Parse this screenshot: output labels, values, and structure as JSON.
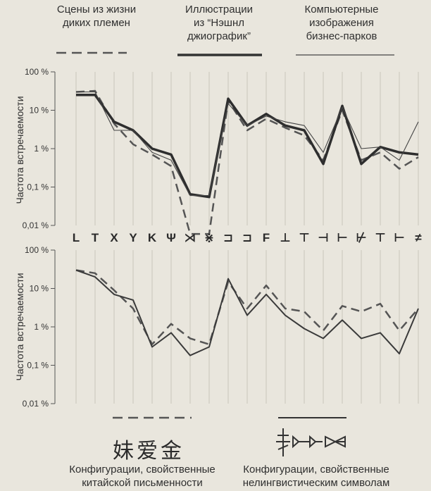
{
  "chart_data": [
    {
      "type": "line",
      "ylabel": "Частота встречаемости",
      "yscale": "log",
      "ylim": [
        0.01,
        100
      ],
      "yticks": [
        "100 %",
        "10 %",
        "1 %",
        "0,1 %",
        "0,01 %"
      ],
      "categories": [
        "L",
        "T",
        "X",
        "Y",
        "K",
        "Ψ",
        "⋊",
        "⋇",
        "⊐",
        "⊐",
        "F",
        "⊥",
        "⊤",
        "⊣",
        "⊢",
        "⊬",
        "⊤",
        "⊢",
        "≠"
      ],
      "series": [
        {
          "name": "Сцены из жизни диких племен",
          "style": "dashed",
          "values": [
            30,
            32,
            4.5,
            1.3,
            0.7,
            0.35,
            0.006,
            0.006,
            18,
            3,
            6,
            3.5,
            2.2,
            0.5,
            10,
            0.5,
            0.8,
            0.3,
            0.6
          ]
        },
        {
          "name": "Иллюстрации из “Нэшнл джиографик”",
          "style": "thick",
          "values": [
            25,
            25,
            5,
            3,
            1,
            0.7,
            0.065,
            0.055,
            20,
            4,
            8,
            4,
            3,
            0.4,
            13,
            0.4,
            1.1,
            0.8,
            0.7
          ]
        },
        {
          "name": "Компьютерные изображения бизнес-парков",
          "style": "thin",
          "values": [
            30,
            30,
            3,
            3,
            0.8,
            0.5,
            0.06,
            0.06,
            15,
            4,
            7,
            5,
            4,
            0.8,
            12,
            1,
            1.1,
            0.5,
            5
          ]
        }
      ]
    },
    {
      "type": "line",
      "ylabel": "Частота встречаемости",
      "yscale": "log",
      "ylim": [
        0.01,
        100
      ],
      "yticks": [
        "100 %",
        "10 %",
        "1 %",
        "0,1 %",
        "0,01 %"
      ],
      "series": [
        {
          "name": "Конфигурации, свойственные китайской письменности",
          "style": "dashed",
          "values": [
            30,
            25,
            9,
            3,
            0.35,
            1.2,
            0.5,
            0.35,
            15,
            3,
            12,
            3,
            2.5,
            0.8,
            3.5,
            2.5,
            4,
            0.8,
            3
          ]
        },
        {
          "name": "Конфигурации, свойственные нелингвистическим символам",
          "style": "solid",
          "values": [
            30,
            20,
            7,
            5,
            0.3,
            0.7,
            0.18,
            0.3,
            18,
            2,
            7,
            2,
            0.9,
            0.5,
            1.5,
            0.5,
            0.7,
            0.2,
            3
          ]
        }
      ]
    }
  ],
  "legend_top": [
    {
      "line1": "Сцены из жизни",
      "line2": "диких племен"
    },
    {
      "line1": "Иллюстрации",
      "line2": "из “Нэшнл",
      "line3": "джиографик”"
    },
    {
      "line1": "Компьютерные",
      "line2": "изображения",
      "line3": "бизнес-парков"
    }
  ],
  "legend_bottom": [
    {
      "line1": "Конфигурации, свойственные",
      "line2": "китайской письменности"
    },
    {
      "line1": "Конфигурации, свойственные",
      "line2": "нелингвистическим символам"
    }
  ],
  "cjk_sample": "妹爱金",
  "colors": {
    "bg": "#e9e6dd",
    "line": "#3a3a3a",
    "grid": "#c9c5bb"
  }
}
